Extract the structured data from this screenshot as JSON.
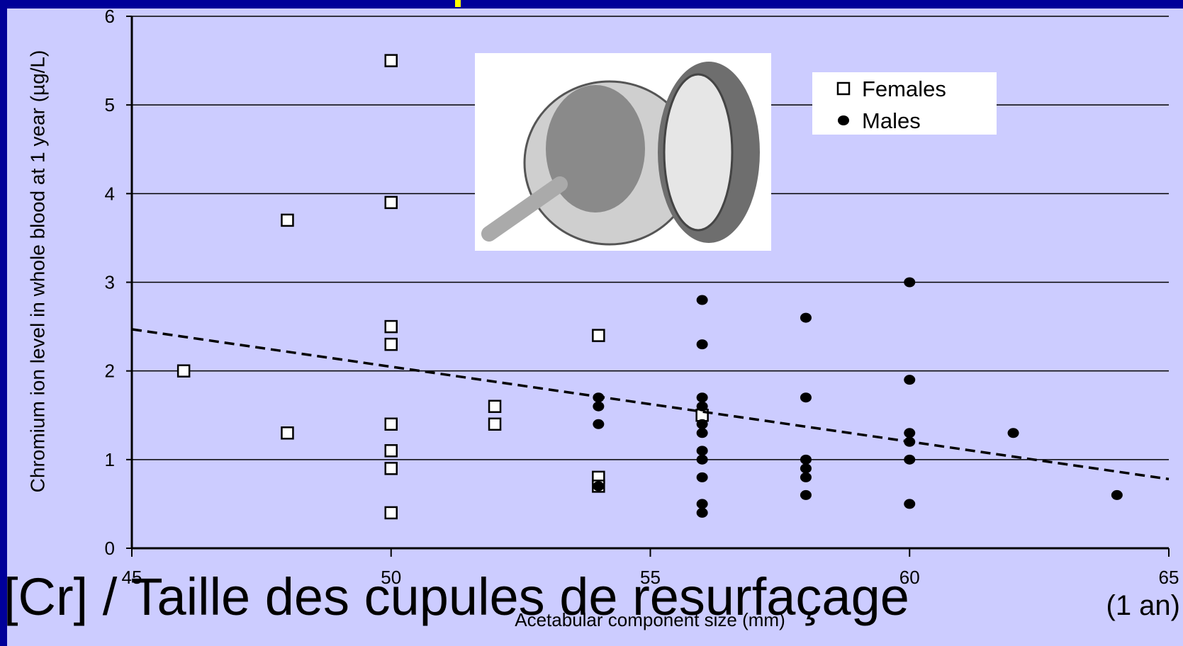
{
  "chart_data": {
    "type": "scatter",
    "title": "[Cr] / Taille des cupules de resurfaçage",
    "subtitle": "(1 an)",
    "x_label": "Acetabular component size (mm)",
    "y_label": "Chromium ion level in whole blood at 1 year (µg/L)",
    "xlim": [
      45,
      65
    ],
    "xticks": [
      45,
      50,
      55,
      60,
      65
    ],
    "ylim": [
      0,
      6
    ],
    "yticks": [
      0,
      1,
      2,
      3,
      4,
      5,
      6
    ],
    "grid": true,
    "legend": "upper right",
    "series": [
      {
        "name": "Females",
        "color": "#ffffff",
        "marker": "square",
        "x": [
          46,
          48,
          48,
          50,
          50,
          50,
          50,
          50,
          50,
          50,
          50,
          52,
          52,
          54,
          54,
          54,
          56
        ],
        "values": [
          2.0,
          3.7,
          1.3,
          5.5,
          3.9,
          2.5,
          2.3,
          1.4,
          1.1,
          0.9,
          0.4,
          1.6,
          1.4,
          2.4,
          0.8,
          0.7,
          1.5
        ]
      },
      {
        "name": "Males",
        "color": "#000000",
        "marker": "circle",
        "x": [
          54,
          54,
          54,
          54,
          56,
          56,
          56,
          56,
          56,
          56,
          56,
          56,
          56,
          56,
          56,
          58,
          58,
          58,
          58,
          58,
          58,
          60,
          60,
          60,
          60,
          60,
          60,
          62,
          64
        ],
        "values": [
          1.7,
          1.6,
          1.4,
          0.7,
          2.8,
          2.3,
          1.7,
          1.6,
          1.4,
          1.3,
          1.1,
          1.0,
          0.8,
          0.5,
          0.4,
          2.6,
          1.7,
          1.0,
          0.9,
          0.8,
          0.6,
          3.0,
          1.9,
          1.3,
          1.2,
          1.0,
          0.5,
          1.3,
          0.6
        ]
      }
    ],
    "trend": {
      "x": [
        45,
        65
      ],
      "values": [
        2.47,
        0.78
      ]
    }
  }
}
